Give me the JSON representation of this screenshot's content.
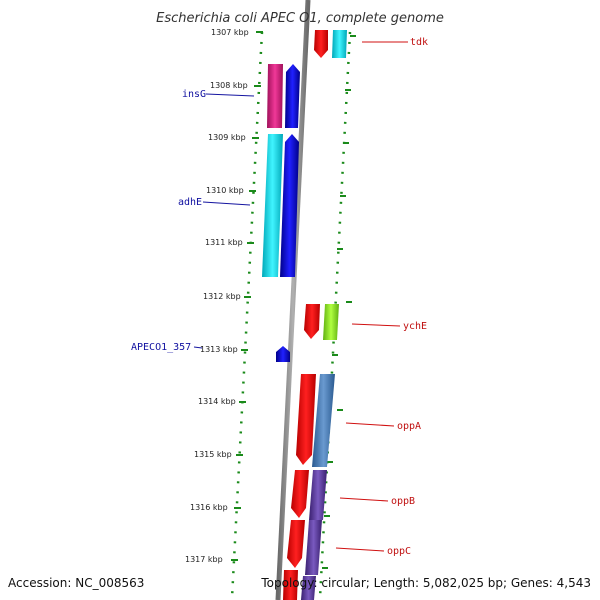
{
  "title": "Escherichia coli APEC O1, complete genome",
  "accession": "Accession: NC_008563",
  "topology": "Topology: circular; Length: 5,082,025 bp; Genes: 4,543",
  "kbp_ticks": [
    "1307 kbp",
    "1308 kbp",
    "1309 kbp",
    "1310 kbp",
    "1311 kbp",
    "1312 kbp",
    "1313 kbp",
    "1314 kbp",
    "1315 kbp",
    "1316 kbp",
    "1317 kbp"
  ],
  "genes_left": [
    {
      "label": "insG",
      "color": "#1515a0"
    },
    {
      "label": "adhE",
      "color": "#1515a0"
    },
    {
      "label": "APECO1_357",
      "color": "#1515a0"
    }
  ],
  "genes_right": [
    {
      "label": "tdk",
      "color": "#d01010"
    },
    {
      "label": "ychE",
      "color": "#d01010"
    },
    {
      "label": "oppA",
      "color": "#d01010"
    },
    {
      "label": "oppB",
      "color": "#d01010"
    },
    {
      "label": "oppC",
      "color": "#d01010"
    }
  ],
  "colors": {
    "backbone": "#8a8a8a",
    "ruler_dots": "#1a8a1a",
    "forward_strand": "#ee1010",
    "reverse_strand": "#0a0ae0",
    "cyan_cog": "#18e0e8",
    "magenta_cog": "#e0208a",
    "lime_cog": "#90e020",
    "steel_cog": "#4a7ab0",
    "purple_cog": "#5a3a9a"
  }
}
